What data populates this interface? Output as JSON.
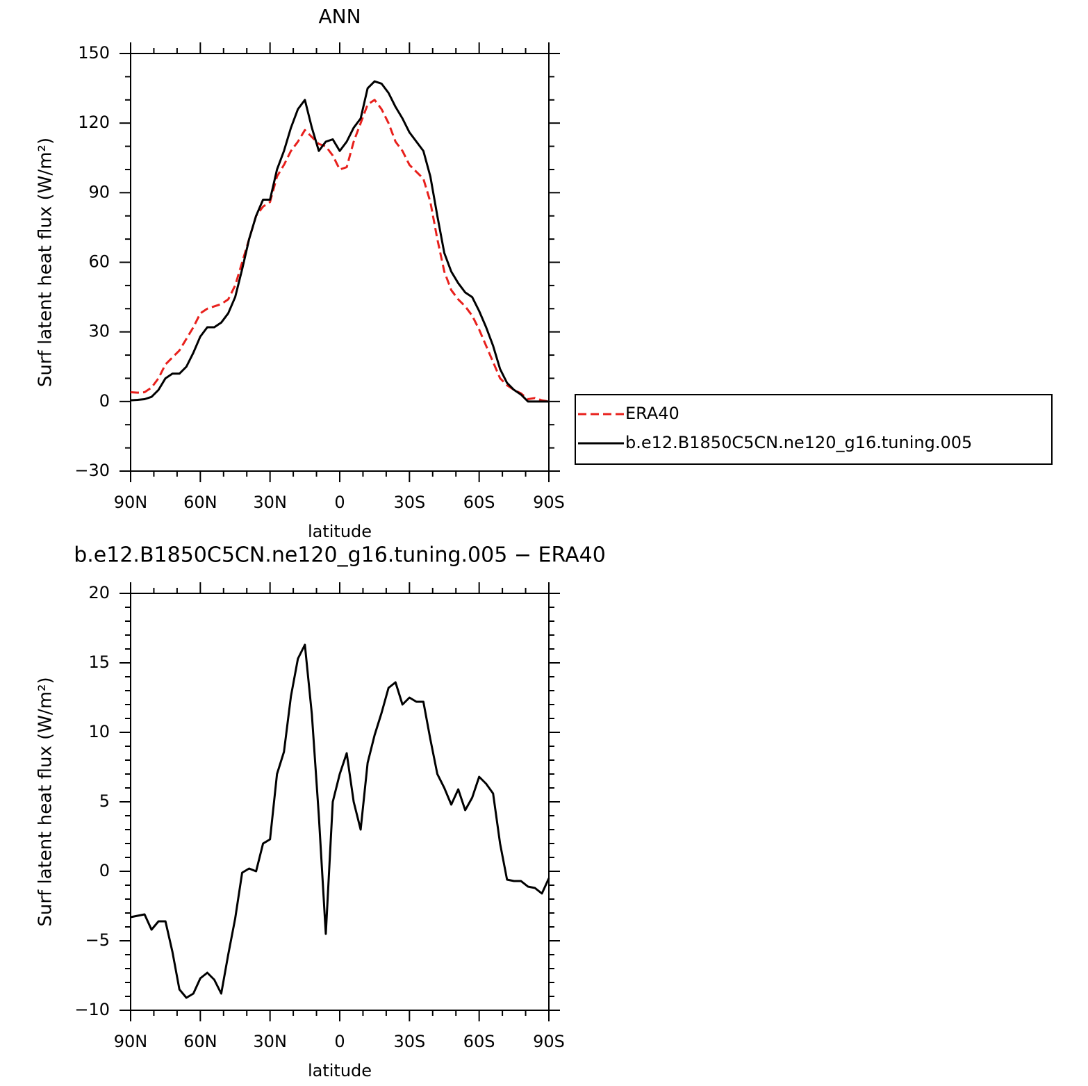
{
  "chart_data": [
    {
      "type": "line",
      "title": "ANN",
      "xlabel": "latitude",
      "ylabel": "Surf latent heat flux (W/m²)",
      "xlim": [
        90,
        -90
      ],
      "xticks": [
        {
          "value": 90,
          "label": "90N"
        },
        {
          "value": 60,
          "label": "60N"
        },
        {
          "value": 30,
          "label": "30N"
        },
        0,
        {
          "value": -30,
          "label": "30S"
        },
        {
          "value": -60,
          "label": "60S"
        },
        {
          "value": -90,
          "label": "90S"
        }
      ],
      "xminorticks": [
        80,
        70,
        50,
        40,
        20,
        10,
        -10,
        -20,
        -40,
        -50,
        -70,
        -80
      ],
      "ylim": [
        -30,
        150
      ],
      "yticks": [
        {
          "value": -30,
          "label": "−30"
        },
        0,
        30,
        60,
        90,
        120,
        150
      ],
      "yminorticks": [
        -20,
        -10,
        10,
        20,
        40,
        50,
        70,
        80,
        100,
        110,
        130,
        140
      ],
      "legend": "right",
      "x": [
        90,
        87,
        84,
        81,
        78,
        75,
        72,
        69,
        66,
        63,
        60,
        57,
        54,
        51,
        48,
        45,
        42,
        39,
        36,
        33,
        30,
        27,
        24,
        21,
        18,
        15,
        12,
        9,
        6,
        3,
        0,
        -3,
        -6,
        -9,
        -12,
        -15,
        -18,
        -21,
        -24,
        -27,
        -30,
        -33,
        -36,
        -39,
        -42,
        -45,
        -48,
        -51,
        -54,
        -57,
        -60,
        -63,
        -66,
        -69,
        -72,
        -75,
        -78,
        -81,
        -84,
        -87,
        -90
      ],
      "series": [
        {
          "name": "ERA40",
          "color": "#e8201c",
          "dash": true,
          "values": [
            4,
            3.8,
            4,
            6,
            10,
            16,
            19,
            22,
            27,
            32,
            38,
            40,
            41,
            42,
            44,
            50,
            60,
            70,
            80,
            84,
            86,
            97,
            102,
            108,
            112,
            117,
            114,
            111,
            110,
            106,
            100,
            101,
            112,
            120,
            128,
            130,
            126,
            120,
            112,
            108,
            102,
            99,
            96,
            86,
            70,
            56,
            48,
            44,
            41,
            37,
            31,
            24,
            17,
            10,
            7,
            5,
            3.5,
            1,
            1.5,
            0.5,
            0
          ]
        },
        {
          "name": "b.e12.B1850C5CN.ne120_g16.tuning.005",
          "color": "#000000",
          "dash": false,
          "values": [
            0.5,
            0.7,
            1,
            2,
            5,
            10,
            12,
            12,
            15,
            21,
            28,
            32,
            32,
            34,
            38,
            45,
            57,
            70,
            80,
            87,
            87,
            100,
            108,
            118,
            126,
            130,
            118,
            108,
            112,
            113,
            108,
            112,
            118,
            122,
            135,
            138,
            137,
            133,
            127,
            122,
            116,
            112,
            108,
            97,
            80,
            64,
            56,
            51,
            47,
            45,
            39,
            32,
            24,
            14,
            8,
            5,
            3,
            0,
            0,
            0,
            0
          ]
        }
      ]
    },
    {
      "type": "line",
      "title": "b.e12.B1850C5CN.ne120_g16.tuning.005 − ERA40",
      "xlabel": "latitude",
      "ylabel": "Surf latent heat flux (W/m²)",
      "xlim": [
        90,
        -90
      ],
      "xticks": [
        {
          "value": 90,
          "label": "90N"
        },
        {
          "value": 60,
          "label": "60N"
        },
        {
          "value": 30,
          "label": "30N"
        },
        0,
        {
          "value": -30,
          "label": "30S"
        },
        {
          "value": -60,
          "label": "60S"
        },
        {
          "value": -90,
          "label": "90S"
        }
      ],
      "xminorticks": [
        80,
        70,
        50,
        40,
        20,
        10,
        -10,
        -20,
        -40,
        -50,
        -70,
        -80
      ],
      "ylim": [
        -10,
        20
      ],
      "yticks": [
        {
          "value": -10,
          "label": "−10"
        },
        {
          "value": -5,
          "label": "−5"
        },
        0,
        5,
        10,
        15,
        20
      ],
      "yminorticks": [
        -9,
        -8,
        -7,
        -6,
        -4,
        -3,
        -2,
        -1,
        1,
        2,
        3,
        4,
        6,
        7,
        8,
        9,
        11,
        12,
        13,
        14,
        16,
        17,
        18,
        19
      ],
      "x": [
        90,
        87,
        84,
        81,
        78,
        75,
        72,
        69,
        66,
        63,
        60,
        57,
        54,
        51,
        48,
        45,
        42,
        39,
        36,
        33,
        30,
        27,
        24,
        21,
        18,
        15,
        12,
        9,
        6,
        3,
        0,
        -3,
        -6,
        -9,
        -12,
        -15,
        -18,
        -21,
        -24,
        -27,
        -30,
        -33,
        -36,
        -39,
        -42,
        -45,
        -48,
        -51,
        -54,
        -57,
        -60,
        -63,
        -66,
        -69,
        -72,
        -75,
        -78,
        -81,
        -84,
        -87,
        -90
      ],
      "series": [
        {
          "color": "#000000",
          "dash": false,
          "values": [
            -3.3,
            -3.2,
            -3.1,
            -4.2,
            -3.6,
            -3.6,
            -5.8,
            -8.5,
            -9.1,
            -8.8,
            -7.7,
            -7.3,
            -7.8,
            -8.8,
            -6,
            -3.4,
            -0.1,
            0.2,
            0,
            2,
            2.3,
            7,
            8.6,
            12.6,
            15.3,
            16.3,
            11.3,
            4,
            -4.5,
            5,
            7,
            8.5,
            5,
            3,
            7.8,
            9.8,
            11.4,
            13.2,
            13.6,
            12,
            12.5,
            12.2,
            12.2,
            9.5,
            7,
            6,
            4.8,
            5.9,
            4.4,
            5.3,
            6.8,
            6.3,
            5.6,
            2,
            -0.6,
            -0.7,
            -0.7,
            -1.1,
            -1.2,
            -1.6,
            -0.5
          ]
        }
      ]
    }
  ]
}
